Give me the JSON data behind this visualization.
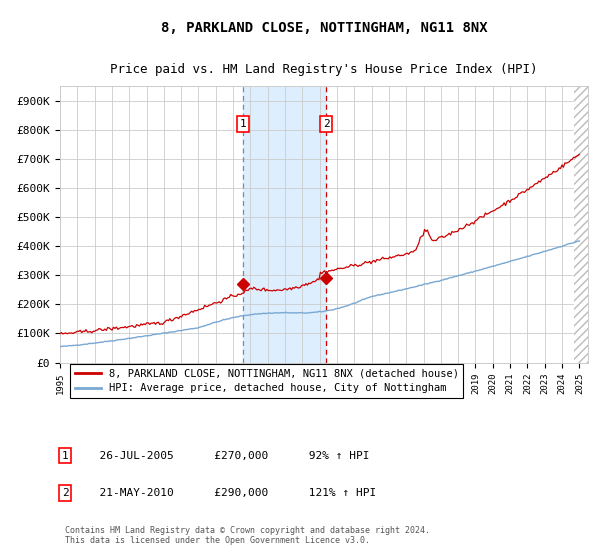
{
  "title": "8, PARKLAND CLOSE, NOTTINGHAM, NG11 8NX",
  "subtitle": "Price paid vs. HM Land Registry's House Price Index (HPI)",
  "ylim": [
    0,
    950000
  ],
  "yticks": [
    0,
    100000,
    200000,
    300000,
    400000,
    500000,
    600000,
    700000,
    800000,
    900000
  ],
  "ytick_labels": [
    "£0",
    "£100K",
    "£200K",
    "£300K",
    "£400K",
    "£500K",
    "£600K",
    "£700K",
    "£800K",
    "£900K"
  ],
  "x_start_year": 1995,
  "x_end_year": 2025,
  "sale1_date": 2005.56,
  "sale1_price": 270000,
  "sale1_label": "1",
  "sale1_text": "26-JUL-2005",
  "sale1_pct": "92% ↑ HPI",
  "sale2_date": 2010.38,
  "sale2_price": 290000,
  "sale2_label": "2",
  "sale2_text": "21-MAY-2010",
  "sale2_pct": "121% ↑ HPI",
  "hpi_color": "#7aa8d2",
  "property_color": "#cc0000",
  "background_color": "#ffffff",
  "grid_color": "#cccccc",
  "shade_color": "#ddeeff",
  "legend_property": "8, PARKLAND CLOSE, NOTTINGHAM, NG11 8NX (detached house)",
  "legend_hpi": "HPI: Average price, detached house, City of Nottingham",
  "footer": "Contains HM Land Registry data © Crown copyright and database right 2024.\nThis data is licensed under the Open Government Licence v3.0.",
  "title_fontsize": 10,
  "subtitle_fontsize": 9
}
